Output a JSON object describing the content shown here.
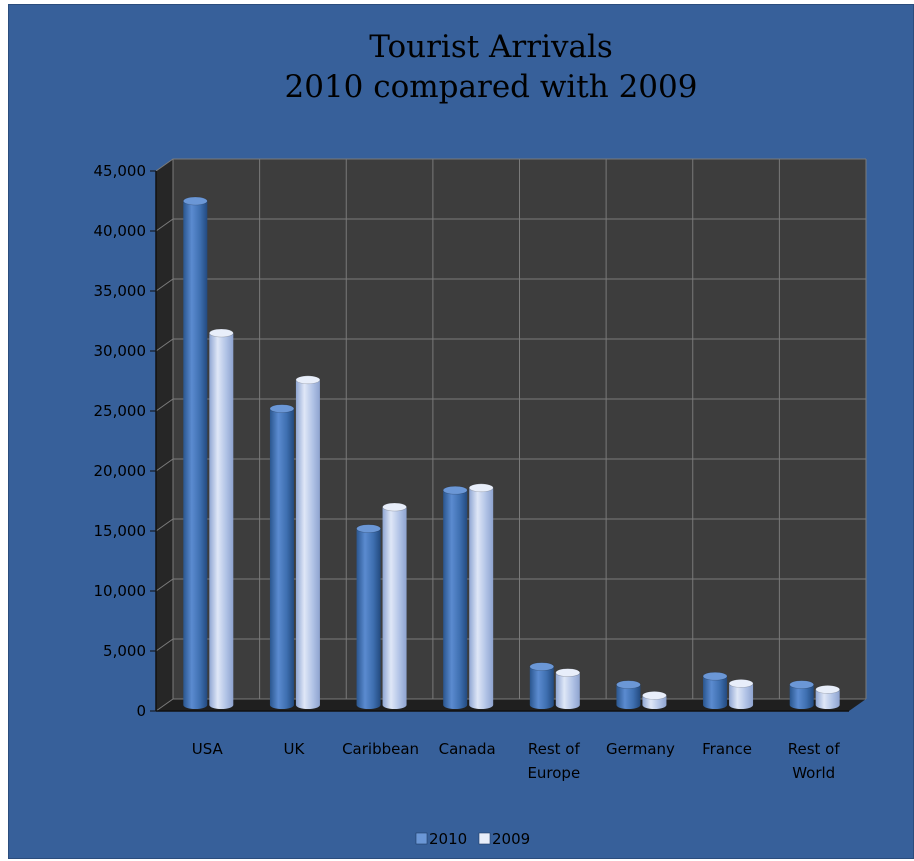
{
  "chart_data": {
    "type": "bar",
    "title_lines": [
      "Tourist Arrivals",
      "2010 compared with 2009"
    ],
    "categories": [
      "USA",
      "UK",
      "Caribbean",
      "Canada",
      "Rest of Europe",
      "Germany",
      "France",
      "Rest of World"
    ],
    "category_label_lines": [
      [
        "USA"
      ],
      [
        "UK"
      ],
      [
        "Caribbean"
      ],
      [
        "Canada"
      ],
      [
        "Rest of",
        "Europe"
      ],
      [
        "Germany"
      ],
      [
        "France"
      ],
      [
        "Rest of",
        "World"
      ]
    ],
    "series": [
      {
        "name": "2010",
        "values": [
          42000,
          24700,
          14700,
          17900,
          3200,
          1700,
          2400,
          1700
        ],
        "color": "#3e6fb0"
      },
      {
        "name": "2009",
        "values": [
          31000,
          27100,
          16500,
          18100,
          2700,
          800,
          1800,
          1300
        ],
        "color": "#a9bde3"
      }
    ],
    "ylim": [
      0,
      45000
    ],
    "y_ticks": [
      "0",
      "5,000",
      "10,000",
      "15,000",
      "20,000",
      "25,000",
      "30,000",
      "35,000",
      "40,000",
      "45,000"
    ],
    "grid": true,
    "legend_position": "bottom",
    "background_color": "#37609a",
    "plot_color": "#3d3d3d"
  }
}
